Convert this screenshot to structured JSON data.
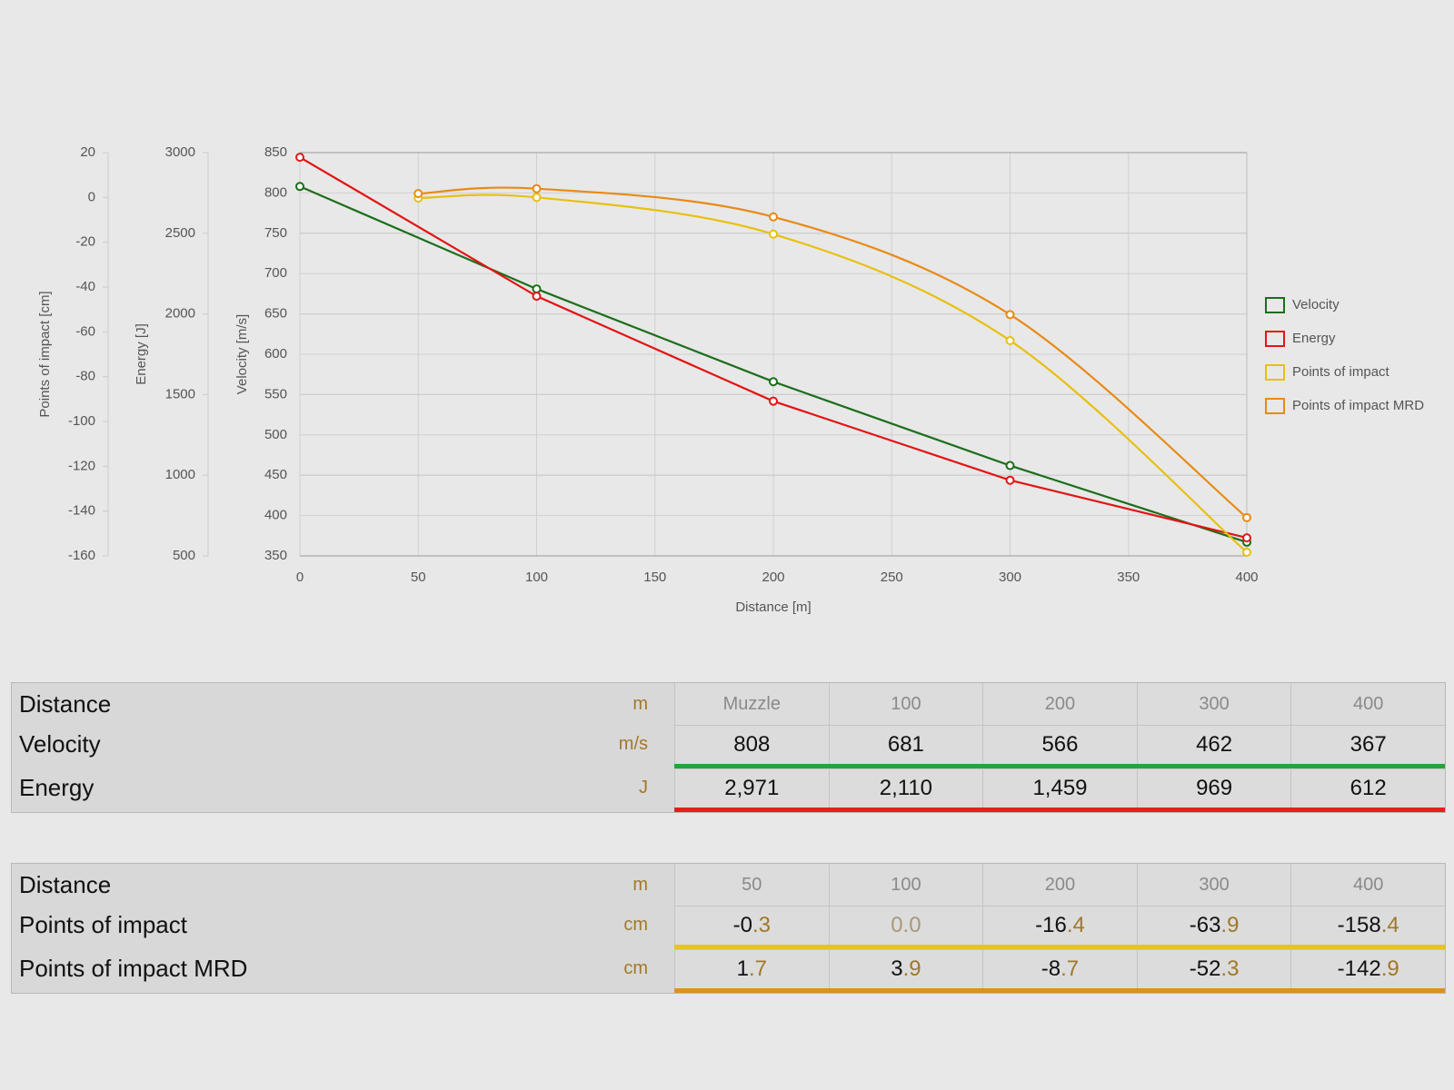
{
  "chart_data": {
    "type": "line",
    "x_label": "Distance [m]",
    "y_label": "Velocity [m/s]",
    "y2_label": "Energy [J]",
    "y3_label": "Points of impact [cm]",
    "xlim": [
      0,
      400
    ],
    "xticks": [
      0,
      50,
      100,
      150,
      200,
      250,
      300,
      350,
      400
    ],
    "ylim": [
      350,
      850
    ],
    "yticks": [
      350,
      400,
      450,
      500,
      550,
      600,
      650,
      700,
      750,
      800,
      850
    ],
    "y2lim": [
      500,
      3000
    ],
    "y2ticks": [
      500,
      1000,
      1500,
      2000,
      2500,
      3000
    ],
    "y3lim": [
      -160,
      20
    ],
    "y3ticks": [
      -160,
      -140,
      -120,
      -100,
      -80,
      -60,
      -40,
      -20,
      0,
      20
    ],
    "grid": true,
    "series": [
      {
        "name": "Velocity",
        "color": "#1b6e1b",
        "axis": "y",
        "smooth": false,
        "x": [
          0,
          100,
          200,
          300,
          400
        ],
        "values": [
          808,
          681,
          566,
          462,
          367
        ]
      },
      {
        "name": "Energy",
        "color": "#e31414",
        "axis": "y2",
        "smooth": false,
        "x": [
          0,
          100,
          200,
          300,
          400
        ],
        "values": [
          2971,
          2110,
          1459,
          969,
          612
        ]
      },
      {
        "name": "Points of impact",
        "color": "#e8c010",
        "axis": "y3",
        "smooth": true,
        "x": [
          50,
          100,
          200,
          300,
          400
        ],
        "values": [
          -0.3,
          0.0,
          -16.4,
          -63.9,
          -158.4
        ]
      },
      {
        "name": "Points of impact MRD",
        "color": "#e88a14",
        "axis": "y3",
        "smooth": true,
        "x": [
          50,
          100,
          200,
          300,
          400
        ],
        "values": [
          1.7,
          3.9,
          -8.7,
          -52.3,
          -142.9
        ]
      }
    ]
  },
  "tables": [
    {
      "header": {
        "label": "Distance",
        "unit": "m",
        "cells": [
          "Muzzle",
          "100",
          "200",
          "300",
          "400"
        ]
      },
      "rows": [
        {
          "label": "Velocity",
          "unit": "m/s",
          "color": "#22a53a",
          "cells": [
            "808",
            "681",
            "566",
            "462",
            "367"
          ]
        },
        {
          "label": "Energy",
          "unit": "J",
          "color": "#e32020",
          "cells": [
            "2,971",
            "2,110",
            "1,459",
            "969",
            "612"
          ]
        }
      ]
    },
    {
      "header": {
        "label": "Distance",
        "unit": "m",
        "cells": [
          "50",
          "100",
          "200",
          "300",
          "400"
        ]
      },
      "rows": [
        {
          "label": "Points of impact",
          "unit": "cm",
          "color": "#e8c41c",
          "cells": [
            "-0.3",
            "0.0",
            "-16.4",
            "-63.9",
            "-158.4"
          ]
        },
        {
          "label": "Points of impact MRD",
          "unit": "cm",
          "color": "#e0901c",
          "cells": [
            "1.7",
            "3.9",
            "-8.7",
            "-52.3",
            "-142.9"
          ]
        }
      ]
    }
  ]
}
